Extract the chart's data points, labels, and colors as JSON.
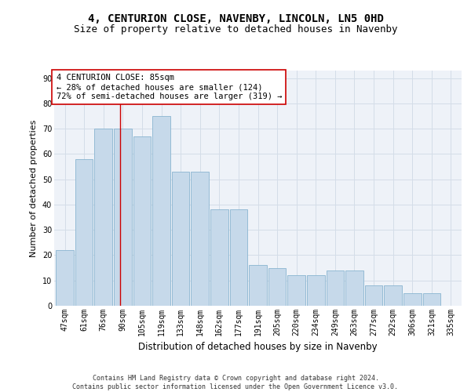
{
  "title": "4, CENTURION CLOSE, NAVENBY, LINCOLN, LN5 0HD",
  "subtitle": "Size of property relative to detached houses in Navenby",
  "xlabel": "Distribution of detached houses by size in Navenby",
  "ylabel": "Number of detached properties",
  "categories": [
    "47sqm",
    "61sqm",
    "76sqm",
    "90sqm",
    "105sqm",
    "119sqm",
    "133sqm",
    "148sqm",
    "162sqm",
    "177sqm",
    "191sqm",
    "205sqm",
    "220sqm",
    "234sqm",
    "249sqm",
    "263sqm",
    "277sqm",
    "292sqm",
    "306sqm",
    "321sqm",
    "335sqm"
  ],
  "bar_values": [
    22,
    58,
    70,
    70,
    67,
    75,
    53,
    53,
    38,
    38,
    16,
    15,
    12,
    12,
    14,
    14,
    8,
    8,
    5,
    5,
    0
  ],
  "bar_color": "#c6d9ea",
  "bar_edge_color": "#8ab4d0",
  "grid_color": "#d4dde8",
  "vline_x": 2.85,
  "vline_color": "#cc0000",
  "annotation_text": "4 CENTURION CLOSE: 85sqm\n← 28% of detached houses are smaller (124)\n72% of semi-detached houses are larger (319) →",
  "annotation_box_color": "#ffffff",
  "annotation_box_edge": "#cc0000",
  "footer": "Contains HM Land Registry data © Crown copyright and database right 2024.\nContains public sector information licensed under the Open Government Licence v3.0.",
  "ylim": [
    0,
    93
  ],
  "title_fontsize": 10,
  "subtitle_fontsize": 9,
  "tick_fontsize": 7,
  "ylabel_fontsize": 8,
  "xlabel_fontsize": 8.5,
  "footer_fontsize": 6,
  "annot_fontsize": 7.5
}
